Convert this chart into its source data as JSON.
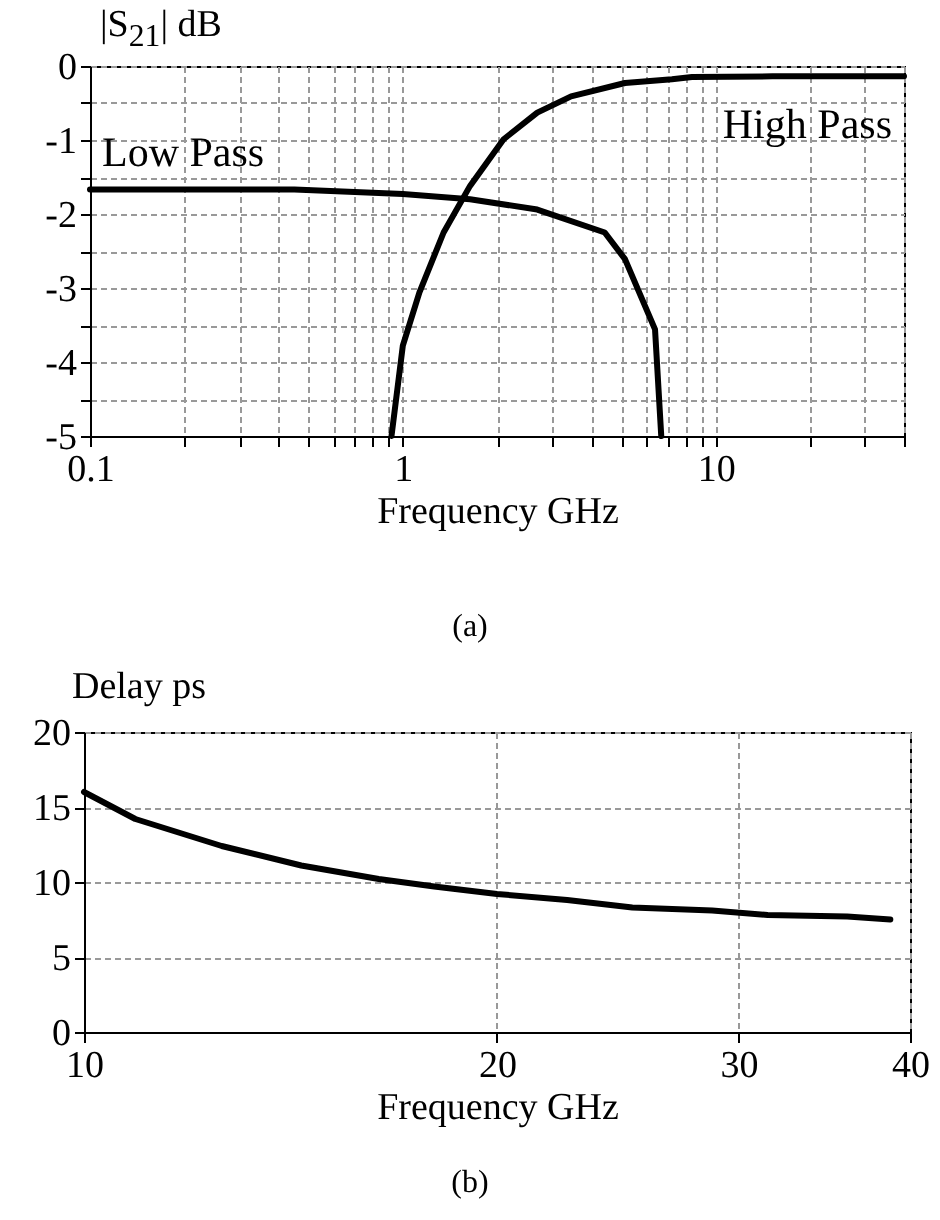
{
  "chart_data": [
    {
      "type": "line",
      "ylabel": "|S$_{21}$| dB",
      "xlabel": "Frequency GHz",
      "log": "x",
      "grid": true,
      "line_style": "solid",
      "xlim": [
        0.1,
        40
      ],
      "ylim": [
        -5,
        0
      ],
      "xticks": [
        0.1,
        {
          "value": 0.2,
          "label": null
        },
        {
          "value": 0.3,
          "label": null
        },
        {
          "value": 0.4,
          "label": null
        },
        {
          "value": 0.5,
          "label": null
        },
        {
          "value": 0.6,
          "label": null
        },
        {
          "value": 0.7,
          "label": null
        },
        {
          "value": 0.8,
          "label": null
        },
        {
          "value": 0.9,
          "label": null
        },
        1,
        {
          "value": 2,
          "label": null
        },
        {
          "value": 3,
          "label": null
        },
        {
          "value": 4,
          "label": null
        },
        {
          "value": 5,
          "label": null
        },
        {
          "value": 6,
          "label": null
        },
        {
          "value": 7,
          "label": null
        },
        {
          "value": 8,
          "label": null
        },
        {
          "value": 9,
          "label": null
        },
        10,
        {
          "value": 20,
          "label": null
        },
        {
          "value": 30,
          "label": null
        },
        {
          "value": 40,
          "label": null
        }
      ],
      "yticks": [
        -5,
        {
          "value": -4.5,
          "label": null
        },
        -4,
        {
          "value": -3.5,
          "label": null
        },
        -3,
        {
          "value": -2.5,
          "label": null
        },
        -2,
        {
          "value": -1.5,
          "label": null
        },
        -1,
        {
          "value": -0.5,
          "label": null
        },
        0
      ],
      "series": [
        {
          "name": "Low Pass",
          "color": "#000000",
          "x": [
            0.1,
            0.45,
            1.0,
            1.64,
            2.69,
            4.42,
            5.13,
            6.4,
            6.7
          ],
          "values": [
            -1.67,
            -1.67,
            -1.73,
            -1.8,
            -1.94,
            -2.25,
            -2.61,
            -3.56,
            -5
          ]
        },
        {
          "name": "High Pass",
          "color": "#000000",
          "x": [
            0.92,
            1.0,
            1.13,
            1.35,
            1.64,
            2.1,
            2.69,
            3.45,
            5.13,
            7.25,
            8.4,
            15.2,
            40
          ],
          "values": [
            -5,
            -3.78,
            -3.06,
            -2.25,
            -1.62,
            -0.99,
            -0.63,
            -0.41,
            -0.23,
            -0.18,
            -0.15,
            -0.14,
            -0.14
          ]
        }
      ],
      "annotations": [
        "(a)"
      ]
    },
    {
      "type": "line",
      "ylabel": "Delay ps",
      "xlabel": "Frequency GHz",
      "log": "x",
      "grid": true,
      "line_style": "solid",
      "xlim": [
        10,
        40
      ],
      "ylim": [
        0,
        20
      ],
      "xticks": [
        10,
        20,
        30,
        40
      ],
      "yticks": [
        0,
        5,
        10,
        15,
        20
      ],
      "x": [
        10,
        10.9,
        12.6,
        14.4,
        16.4,
        18.0,
        20,
        22.5,
        25.1,
        28.7,
        31.5,
        36.0,
        38.7
      ],
      "series": [
        {
          "color": "#000000",
          "values": [
            16.0,
            14.2,
            12.4,
            11.1,
            10.2,
            9.7,
            9.2,
            8.8,
            8.3,
            8.1,
            7.8,
            7.7,
            7.5
          ]
        }
      ],
      "annotations": [
        "(b)"
      ]
    }
  ]
}
